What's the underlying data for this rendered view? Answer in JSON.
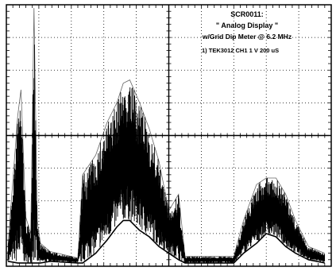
{
  "chart_data": {
    "type": "line",
    "title": "",
    "xlabel": "",
    "ylabel": "",
    "grid": true,
    "grid_divisions": {
      "x": 10,
      "y": 8
    },
    "x_range": [
      0,
      10
    ],
    "y_range": [
      -4,
      4
    ],
    "annotation": {
      "line1": "SCR0011:",
      "line2": "\" Analog Display \"",
      "line3": "w/Grid Dip Meter @ 6.2 MHz",
      "line4": "1) TEK3012   CH1   1   V     200 uS"
    },
    "series": [
      {
        "channel": "CH1",
        "color": "#000000",
        "envelope": [
          {
            "x": 0.05,
            "min": -3.85,
            "max": -3.4
          },
          {
            "x": 0.35,
            "min": -3.9,
            "max": 0.6
          },
          {
            "x": 0.45,
            "min": -3.9,
            "max": 1.4
          },
          {
            "x": 0.6,
            "min": -3.9,
            "max": -2.5
          },
          {
            "x": 0.75,
            "min": -3.9,
            "max": -3.0
          },
          {
            "x": 0.85,
            "min": -3.9,
            "max": 3.9
          },
          {
            "x": 0.95,
            "min": -3.9,
            "max": -2.6
          },
          {
            "x": 1.05,
            "min": -3.9,
            "max": -3.3
          },
          {
            "x": 1.35,
            "min": -3.85,
            "max": -3.55
          },
          {
            "x": 2.2,
            "min": -3.9,
            "max": -3.75
          },
          {
            "x": 2.35,
            "min": -3.9,
            "max": -1.2
          },
          {
            "x": 2.75,
            "min": -3.6,
            "max": -0.6
          },
          {
            "x": 3.1,
            "min": -3.2,
            "max": 0.4
          },
          {
            "x": 3.4,
            "min": -2.8,
            "max": 1.0
          },
          {
            "x": 3.6,
            "min": -2.6,
            "max": 1.6
          },
          {
            "x": 3.8,
            "min": -2.6,
            "max": 1.7
          },
          {
            "x": 4.1,
            "min": -2.9,
            "max": 1.0
          },
          {
            "x": 4.4,
            "min": -3.1,
            "max": 0.2
          },
          {
            "x": 4.7,
            "min": -3.4,
            "max": -0.8
          },
          {
            "x": 5.0,
            "min": -3.6,
            "max": -2.3
          },
          {
            "x": 5.3,
            "min": -3.8,
            "max": -1.8
          },
          {
            "x": 5.5,
            "min": -3.9,
            "max": -3.7
          },
          {
            "x": 7.0,
            "min": -3.9,
            "max": -3.7
          },
          {
            "x": 7.3,
            "min": -3.6,
            "max": -2.6
          },
          {
            "x": 7.7,
            "min": -3.3,
            "max": -1.5
          },
          {
            "x": 8.0,
            "min": -3.0,
            "max": -1.3
          },
          {
            "x": 8.3,
            "min": -3.1,
            "max": -1.3
          },
          {
            "x": 8.6,
            "min": -3.4,
            "max": -1.8
          },
          {
            "x": 8.9,
            "min": -3.6,
            "max": -2.6
          },
          {
            "x": 9.3,
            "min": -3.8,
            "max": -3.4
          },
          {
            "x": 9.8,
            "min": -3.9,
            "max": -3.6
          }
        ]
      }
    ]
  }
}
